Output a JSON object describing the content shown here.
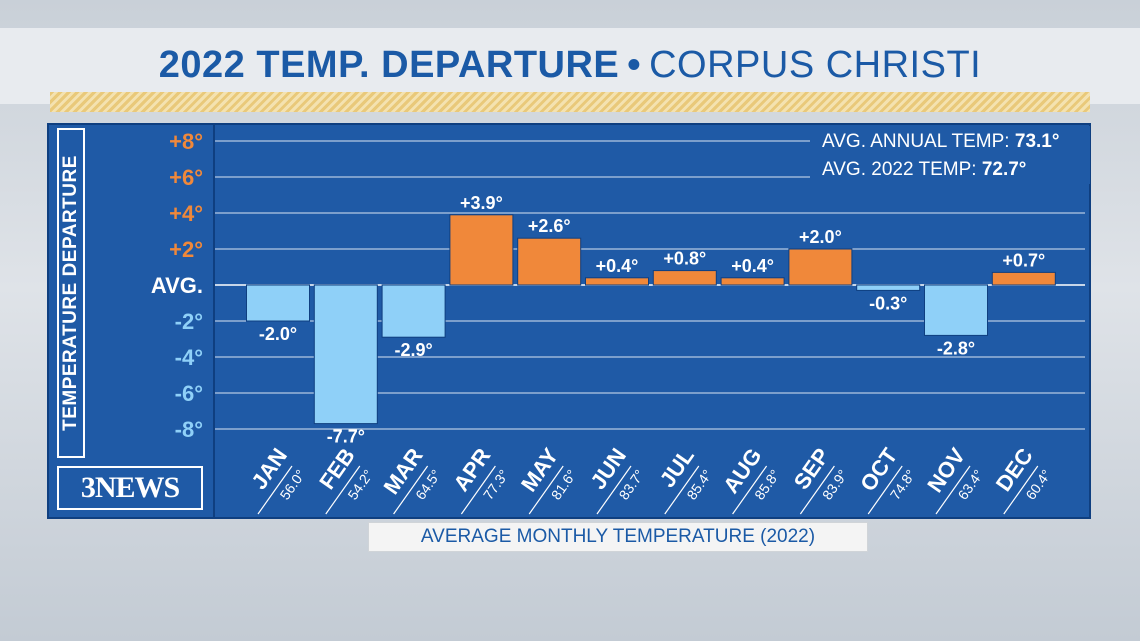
{
  "header": {
    "title_bold": "2022 TEMP. DEPARTURE",
    "separator": "•",
    "title_location": "CORPUS CHRISTI"
  },
  "logo": {
    "text": "3NEWS"
  },
  "info_box": {
    "annual_label": "AVG. ANNUAL TEMP:",
    "annual_value": "73.1°",
    "year_label": "AVG. 2022 TEMP:",
    "year_value": "72.7°"
  },
  "colors": {
    "positive": "#f0883a",
    "negative": "#8fd0f8",
    "panel": "#1f5aa6",
    "title": "#1b5aa6"
  },
  "chart_data": {
    "type": "bar",
    "title": "2022 TEMP. DEPARTURE • CORPUS CHRISTI",
    "ylabel": "TEMPERATURE DEPARTURE",
    "xlabel": "AVERAGE MONTHLY TEMPERATURE (2022)",
    "ylim": [
      -9,
      9
    ],
    "grid": true,
    "y_ticks": [
      {
        "value": 8,
        "label": "+8°"
      },
      {
        "value": 6,
        "label": "+6°"
      },
      {
        "value": 4,
        "label": "+4°"
      },
      {
        "value": 2,
        "label": "+2°"
      },
      {
        "value": 0,
        "label": "AVG."
      },
      {
        "value": -2,
        "label": "-2°"
      },
      {
        "value": -4,
        "label": "-4°"
      },
      {
        "value": -6,
        "label": "-6°"
      },
      {
        "value": -8,
        "label": "-8°"
      }
    ],
    "categories": [
      "JAN",
      "FEB",
      "MAR",
      "APR",
      "MAY",
      "JUN",
      "JUL",
      "AUG",
      "SEP",
      "OCT",
      "NOV",
      "DEC"
    ],
    "monthly_avg_temps": [
      "56.0°",
      "54.2°",
      "64.5°",
      "77.3°",
      "81.6°",
      "83.7°",
      "85.4°",
      "85.8°",
      "83.9°",
      "74.8°",
      "63.4°",
      "60.4°"
    ],
    "values": [
      -2.0,
      -7.7,
      -2.9,
      3.9,
      2.6,
      0.4,
      0.8,
      0.4,
      2.0,
      -0.3,
      -2.8,
      0.7
    ],
    "value_labels": [
      "-2.0°",
      "-7.7°",
      "-2.9°",
      "+3.9°",
      "+2.6°",
      "+0.4°",
      "+0.8°",
      "+0.4°",
      "+2.0°",
      "-0.3°",
      "-2.8°",
      "+0.7°"
    ]
  }
}
